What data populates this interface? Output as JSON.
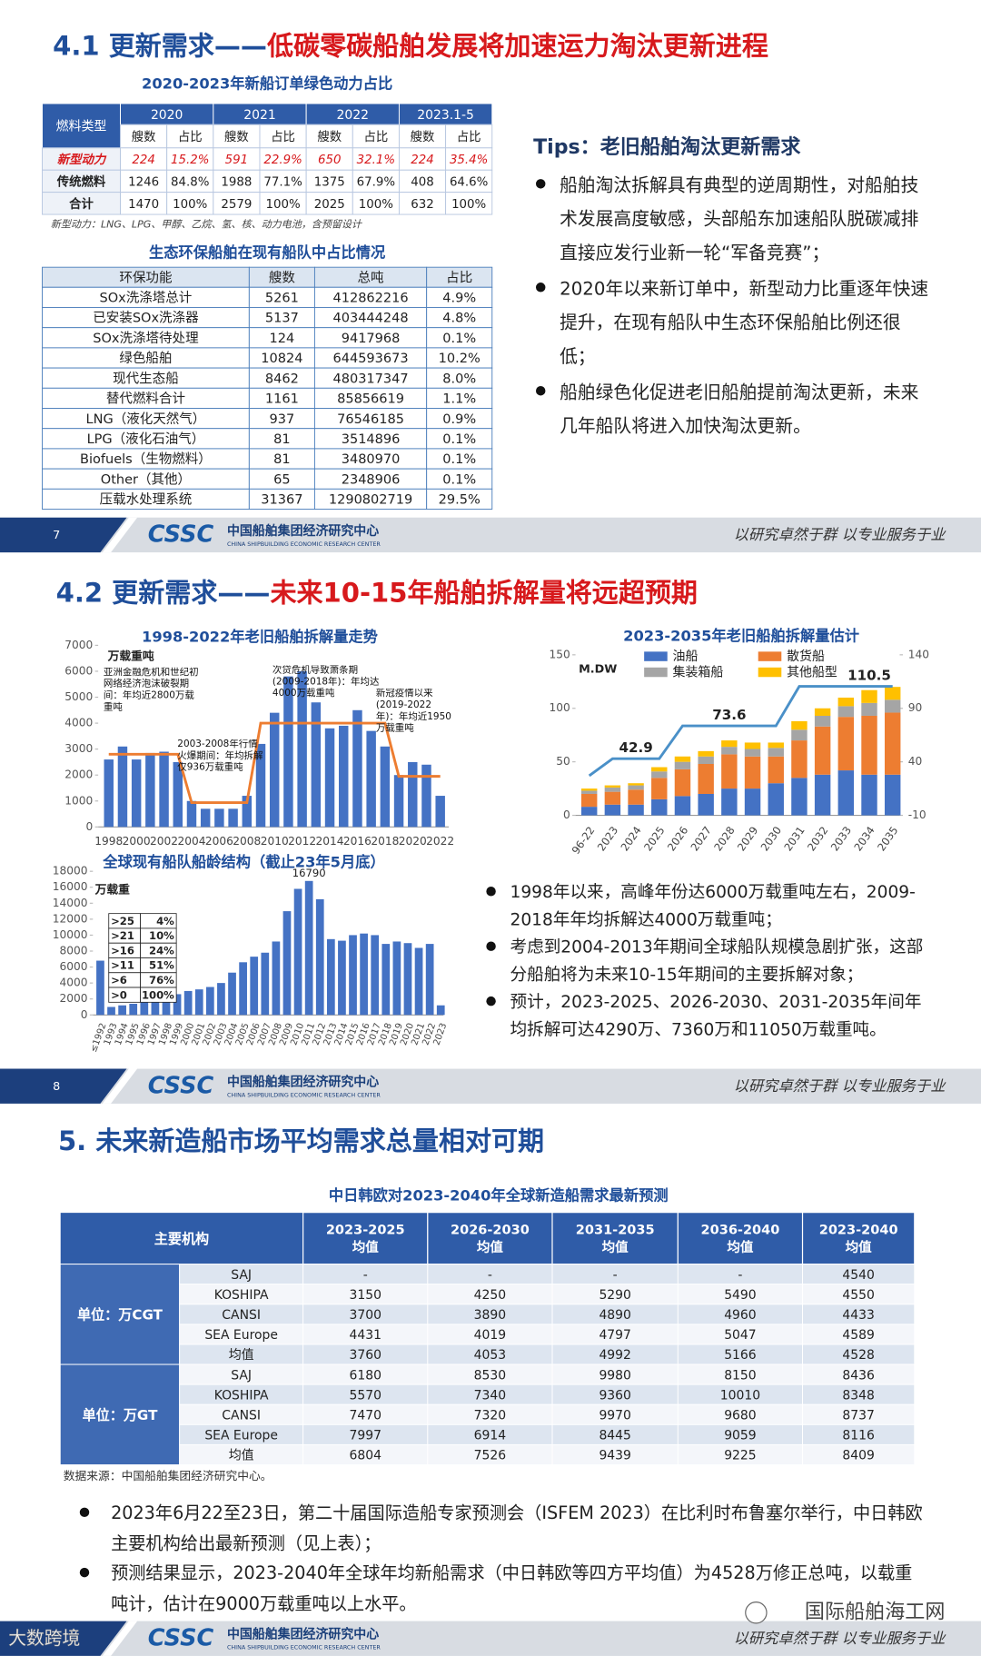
{
  "slides": [
    {
      "page": "7",
      "title_prefix": "4.1 更新需求——",
      "title_highlight": "低碳零碳船舶发展将加速运力淘汰更新进程",
      "table1": {
        "title": "2020-2023年新船订单绿色动力占比",
        "corner": "燃料类型",
        "years": [
          "2020",
          "2021",
          "2022",
          "2023.1-5"
        ],
        "subheaders": [
          "艘数",
          "占比",
          "艘数",
          "占比",
          "艘数",
          "占比",
          "艘数",
          "占比"
        ],
        "rows": [
          [
            "新型动力",
            "224",
            "15.2%",
            "591",
            "22.9%",
            "650",
            "32.1%",
            "224",
            "35.4%"
          ],
          [
            "传统燃料",
            "1246",
            "84.8%",
            "1988",
            "77.1%",
            "1375",
            "67.9%",
            "408",
            "64.6%"
          ],
          [
            "合计",
            "1470",
            "100%",
            "2579",
            "100%",
            "2025",
            "100%",
            "632",
            "100%"
          ]
        ],
        "note": "新型动力：LNG、LPG、甲醇、乙烷、氢、核、动力电池，含预留设计"
      },
      "table2": {
        "title": "生态环保船舶在现有船队中占比情况",
        "headers": [
          "环保功能",
          "艘数",
          "总吨",
          "占比"
        ],
        "rows": [
          [
            "SOx洗涤塔总计",
            "5261",
            "412862216",
            "4.9%"
          ],
          [
            "已安装SOx洗涤器",
            "5137",
            "403444248",
            "4.8%"
          ],
          [
            "SOx洗涤塔待处理",
            "124",
            "9417968",
            "0.1%"
          ],
          [
            "绿色船舶",
            "10824",
            "644593673",
            "10.2%"
          ],
          [
            "现代生态船",
            "8462",
            "480317347",
            "8.0%"
          ],
          [
            "替代燃料合计",
            "1161",
            "85856619",
            "1.1%"
          ],
          [
            "LNG（液化天然气）",
            "937",
            "76546185",
            "0.9%"
          ],
          [
            "LPG（液化石油气）",
            "81",
            "3514896",
            "0.1%"
          ],
          [
            "Biofuels（生物燃料）",
            "81",
            "3480970",
            "0.1%"
          ],
          [
            "Other（其他）",
            "65",
            "2348906",
            "0.1%"
          ],
          [
            "压载水处理系统",
            "31367",
            "1290802719",
            "29.5%"
          ]
        ]
      },
      "tips": {
        "title": "Tips：老旧船舶淘汰更新需求",
        "bullets": [
          "船舶淘汰拆解具有典型的逆周期性，对船舶技术发展高度敏感，头部船东加速船队脱碳减排直接应发行业新一轮“军备竞赛”；",
          "2020年以来新订单中，新型动力比重逐年快速提升，在现有船队中生态环保船舶比例还很低；",
          "船舶绿色化促进老旧船舶提前淘汰更新，未来几年船队将进入加快淘汰更新。"
        ]
      }
    },
    {
      "page": "8",
      "title_prefix": "4.2 更新需求——",
      "title_highlight": "未来10-15年船舶拆解量将远超预期",
      "bullets": [
        "1998年以来，高峰年份达6000万载重吨左右，2009-2018年年均拆解达4000万载重吨；",
        "考虑到2004-2013年期间全球船队规模急剧扩张，这部分船舶将为未来10-15年期间的主要拆解对象；",
        "预计，2023-2025、2026-2030、2031-2035年间年均拆解可达4290万、7360万和11050万载重吨。"
      ]
    },
    {
      "title": "5. 未来新造船市场平均需求总量相对可期",
      "table": {
        "title": "中日韩欧对2023-2040年全球新造船需求最新预测",
        "corner": "主要机构",
        "columns": [
          {
            "years": "2023-2025",
            "stat": "均值"
          },
          {
            "years": "2026-2030",
            "stat": "均值"
          },
          {
            "years": "2031-2035",
            "stat": "均值"
          },
          {
            "years": "2036-2040",
            "stat": "均值"
          },
          {
            "years": "2023-2040",
            "stat": "均值"
          }
        ],
        "groups": [
          {
            "label": "单位：万CGT",
            "rows": [
              [
                "SAJ",
                "-",
                "-",
                "-",
                "-",
                "4540"
              ],
              [
                "KOSHIPA",
                "3150",
                "4250",
                "5290",
                "5490",
                "4550"
              ],
              [
                "CANSI",
                "3700",
                "3890",
                "4890",
                "4960",
                "4433"
              ],
              [
                "SEA Europe",
                "4431",
                "4019",
                "4797",
                "5047",
                "4589"
              ],
              [
                "均值",
                "3760",
                "4053",
                "4992",
                "5166",
                "4528"
              ]
            ]
          },
          {
            "label": "单位：万GT",
            "rows": [
              [
                "SAJ",
                "6180",
                "8530",
                "9980",
                "8150",
                "8436"
              ],
              [
                "KOSHIPA",
                "5570",
                "7340",
                "9360",
                "10010",
                "8348"
              ],
              [
                "CANSI",
                "7470",
                "7320",
                "9970",
                "9680",
                "8737"
              ],
              [
                "SEA Europe",
                "7997",
                "6914",
                "8445",
                "9059",
                "8116"
              ],
              [
                "均值",
                "6804",
                "7526",
                "9439",
                "9225",
                "8409"
              ]
            ]
          }
        ],
        "source": "数据来源：中国船舶集团经济研究中心。"
      },
      "bullets": [
        "2023年6月22至23日，第二十届国际造船专家预测会（ISFEM 2023）在比利时布鲁塞尔举行，中日韩欧主要机构给出最新预测（见上表）；",
        "预测结果显示，2023-2040年全球年均新船需求（中日韩欧等四方平均值）为4528万修正总吨，以载重吨计，估计在9000万载重吨以上水平。"
      ]
    }
  ],
  "footer": {
    "logo": "CSSC",
    "org_cn": "中国船舶集团经济研究中心",
    "org_en": "CHINA SHIPBUILDING ECONOMIC RESEARCH CENTER",
    "slogan": "以研究卓然于群 以专业服务于业"
  },
  "watermarks": [
    "大数跨境",
    "国际船舶海工网"
  ],
  "chart_data": [
    {
      "type": "bar",
      "title": "1998-2022年老旧船舶拆解量走势",
      "y_unit": "万载重吨",
      "categories": [
        "1998",
        null,
        "2000",
        null,
        "2002",
        null,
        "2004",
        null,
        "2006",
        null,
        "2008",
        null,
        "2010",
        null,
        "2012",
        null,
        "2014",
        null,
        "2016",
        null,
        "2018",
        null,
        "2020",
        null,
        "2022"
      ],
      "ylim": [
        0,
        7000
      ],
      "yticks": [
        0,
        1000,
        2000,
        3000,
        4000,
        5000,
        6000,
        7000
      ],
      "series": [
        {
          "type": "bar",
          "color": "#4472c4",
          "values": [
            2600,
            3100,
            2600,
            2850,
            2900,
            2500,
            1000,
            700,
            700,
            700,
            1200,
            3200,
            4400,
            5800,
            6000,
            4800,
            3800,
            3900,
            4500,
            3700,
            3100,
            2000,
            2500,
            2400,
            1200
          ]
        },
        {
          "type": "line",
          "color": "#ed7d31",
          "values": [
            2800,
            2800,
            2800,
            2800,
            2800,
            2800,
            936,
            936,
            936,
            936,
            936,
            4000,
            4000,
            4000,
            4000,
            4000,
            4000,
            4000,
            4000,
            4000,
            4000,
            1950,
            1950,
            1950,
            1950
          ]
        }
      ],
      "annotations": [
        "亚洲金融危机和世纪初网络经济泡沫破裂期间：年均近2800万载重吨",
        "2003-2008年行情火爆期间：年均拆解仅936万载重吨",
        "次贷危机导致萧条期(2009-2018年)：年均达4000万载重吨",
        "新冠疫情以来(2019-2022年)：年均近1950万载重吨"
      ]
    },
    {
      "type": "bar",
      "stacked": true,
      "title": "2023-2035年老旧船舶拆解量估计",
      "y_unit": "M.DW",
      "categories": [
        "96-22",
        "2023",
        "2024",
        "2025",
        "2026",
        "2027",
        "2028",
        "2029",
        "2030",
        "2031",
        "2032",
        "2033",
        "2034",
        "2035"
      ],
      "ylim": [
        0,
        150
      ],
      "yticks": [
        0,
        50,
        100,
        150
      ],
      "y2lim": [
        -10,
        140
      ],
      "y2ticks": [
        -10,
        40,
        90,
        140
      ],
      "legend": "top",
      "series": [
        {
          "name": "油船",
          "type": "bar",
          "color": "#4472c4",
          "values": [
            8,
            10,
            10,
            15,
            18,
            20,
            25,
            25,
            30,
            35,
            38,
            42,
            38,
            38
          ]
        },
        {
          "name": "散货船",
          "type": "bar",
          "color": "#ed7d31",
          "values": [
            12,
            12,
            14,
            20,
            25,
            28,
            32,
            30,
            25,
            35,
            45,
            50,
            55,
            58
          ]
        },
        {
          "name": "集装箱船",
          "type": "bar",
          "color": "#a5a5a5",
          "values": [
            3,
            4,
            4,
            6,
            7,
            7,
            7,
            7,
            8,
            10,
            10,
            10,
            12,
            12
          ]
        },
        {
          "name": "其他船型",
          "type": "bar",
          "color": "#ffc000",
          "values": [
            2,
            2,
            2,
            4,
            5,
            5,
            6,
            6,
            5,
            8,
            7,
            8,
            12,
            12
          ]
        },
        {
          "type": "line",
          "axis": "y2",
          "color": "#4a90c8",
          "values": [
            27,
            42.9,
            42.9,
            42.9,
            73.6,
            73.6,
            73.6,
            73.6,
            73.6,
            110.5,
            110.5,
            110.5,
            110.5,
            110.5
          ],
          "value_labels": [
            null,
            null,
            "42.9",
            null,
            null,
            null,
            "73.6",
            null,
            null,
            null,
            null,
            null,
            "110.5",
            null
          ]
        }
      ]
    },
    {
      "type": "bar",
      "title": "全球现有船队船龄结构（截止23年5月底）",
      "y_unit": "万载重",
      "categories": [
        "≤1992",
        "1993",
        "1994",
        "1995",
        "1996",
        "1997",
        "1998",
        "1999",
        "2000",
        "2001",
        "2002",
        "2003",
        "2004",
        "2005",
        "2006",
        "2007",
        "2008",
        "2009",
        "2010",
        "2011",
        "2012",
        "2013",
        "2014",
        "2015",
        "2016",
        "2017",
        "2018",
        "2019",
        "2020",
        "2021",
        "2022",
        "2023"
      ],
      "ylim": [
        0,
        18000
      ],
      "yticks": [
        0,
        2000,
        4000,
        6000,
        8000,
        10000,
        12000,
        14000,
        16000,
        18000
      ],
      "color": "#4472c4",
      "values": [
        6800,
        1000,
        1200,
        1400,
        1700,
        1900,
        2300,
        2600,
        3000,
        3200,
        3500,
        4000,
        5300,
        6600,
        7300,
        7800,
        9200,
        13000,
        15800,
        16790,
        14500,
        9500,
        9300,
        10000,
        10200,
        10000,
        8900,
        9200,
        9000,
        8400,
        8900,
        1200
      ],
      "value_labels": [
        null,
        null,
        null,
        null,
        null,
        null,
        null,
        null,
        null,
        null,
        null,
        null,
        null,
        null,
        null,
        null,
        null,
        null,
        null,
        "16790",
        null,
        null,
        null,
        null,
        null,
        null,
        null,
        null,
        null,
        null,
        null,
        null
      ],
      "inset_table": [
        [
          ">25",
          "4%"
        ],
        [
          ">21",
          "10%"
        ],
        [
          ">16",
          "24%"
        ],
        [
          ">11",
          "51%"
        ],
        [
          ">6",
          "76%"
        ],
        [
          ">0",
          "100%"
        ]
      ]
    }
  ]
}
